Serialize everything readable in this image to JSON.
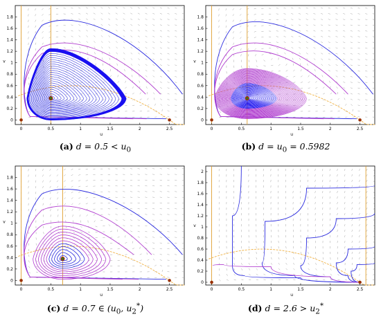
{
  "colors": {
    "trajectory": "#2a2adf",
    "inner_orbit": "#b03ccf",
    "limit_cycle_fill": "#1a10f0",
    "nullcline_v": "#e0a030",
    "nullcline_u": "#f0b040",
    "equilibrium": "#9a3000",
    "center_point": "#2a7a2a",
    "vector_field": "#9a9a9a",
    "axis": "#000000"
  },
  "captions": [
    {
      "label": "(a)",
      "expr": "d = 0.5 < u",
      "sub": "0",
      "sup": ""
    },
    {
      "label": "(b)",
      "expr": "d = u",
      "sub": "0",
      "sup": "",
      "tail": " = 0.5982"
    },
    {
      "label": "(c)",
      "expr": "d = 0.7 ∈ (u",
      "sub": "0",
      "mid": ", u",
      "sub2": "2",
      "sup2": "*",
      "close": ")"
    },
    {
      "label": "(d)",
      "expr": "d = 2.6 > u",
      "sub": "2",
      "sup": "*"
    }
  ],
  "chart_data": [
    {
      "type": "line",
      "title": "",
      "xlabel": "u",
      "ylabel": "v",
      "xlim": [
        -0.1,
        2.75
      ],
      "ylim": [
        -0.08,
        2.0
      ],
      "xticks": [
        "0",
        "0.5",
        "1",
        "1.5",
        "2",
        "2.5"
      ],
      "yticks": [
        "0",
        "0.2",
        "0.4",
        "0.6",
        "0.8",
        "1",
        "1.2",
        "1.4",
        "1.6",
        "1.8"
      ],
      "d": 0.5,
      "equilibria": [
        [
          0,
          0
        ],
        [
          2.5,
          0
        ],
        [
          0.5,
          0.38
        ]
      ],
      "outer_orbits": [
        {
          "peak_v": 1.88,
          "right_u": 2.72
        },
        {
          "peak_v": 1.45,
          "right_u": 2.35
        },
        {
          "peak_v": 1.32,
          "right_u": 2.1
        }
      ],
      "limit_cycle": {
        "u_min": 0.12,
        "u_max": 1.7,
        "v_max": 1.2
      },
      "grid": true,
      "legend": "none"
    },
    {
      "type": "line",
      "title": "",
      "xlabel": "u",
      "ylabel": "v",
      "xlim": [
        -0.1,
        2.75
      ],
      "ylim": [
        -0.08,
        2.0
      ],
      "xticks": [
        "0",
        "0.5",
        "1",
        "1.5",
        "2",
        "2.5"
      ],
      "yticks": [
        "0",
        "0.2",
        "0.4",
        "0.6",
        "0.8",
        "1",
        "1.2",
        "1.4",
        "1.6",
        "1.8"
      ],
      "d": 0.5982,
      "equilibria": [
        [
          0,
          0
        ],
        [
          2.5,
          0
        ],
        [
          0.5982,
          0.38
        ]
      ],
      "outer_orbits": [
        {
          "peak_v": 1.85,
          "right_u": 2.72
        },
        {
          "peak_v": 1.45,
          "right_u": 2.3
        },
        {
          "peak_v": 1.3,
          "right_u": 2.1
        }
      ],
      "center_cloud": {
        "u_min": 0.05,
        "u_max": 1.6,
        "v_max": 0.9
      },
      "grid": true,
      "legend": "none"
    },
    {
      "type": "line",
      "title": "",
      "xlabel": "u",
      "ylabel": "v",
      "xlim": [
        -0.1,
        2.75
      ],
      "ylim": [
        -0.08,
        2.0
      ],
      "xticks": [
        "0",
        "0.5",
        "1",
        "1.5",
        "2",
        "2.5"
      ],
      "yticks": [
        "0",
        "0.2",
        "0.4",
        "0.6",
        "0.8",
        "1",
        "1.2",
        "1.4",
        "1.6",
        "1.8"
      ],
      "d": 0.7,
      "equilibria": [
        [
          0,
          0
        ],
        [
          2.5,
          0
        ],
        [
          0.7,
          0.38
        ]
      ],
      "outer_orbits": [
        {
          "peak_v": 1.72,
          "right_u": 2.72
        },
        {
          "peak_v": 1.4,
          "right_u": 2.2
        },
        {
          "peak_v": 1.1,
          "right_u": 1.9
        }
      ],
      "spiral": {
        "u_min": 0.2,
        "u_max": 1.5,
        "v_max": 0.95
      },
      "grid": true,
      "legend": "none"
    },
    {
      "type": "line",
      "title": "",
      "xlabel": "u",
      "ylabel": "v",
      "xlim": [
        -0.1,
        2.75
      ],
      "ylim": [
        -0.05,
        2.1
      ],
      "xticks": [
        "0",
        "0.5",
        "1",
        "1.5",
        "2",
        "2.5"
      ],
      "yticks": [
        "0",
        "0.2",
        "0.4",
        "0.6",
        "0.8",
        "1",
        "1.2",
        "1.4",
        "1.6",
        "1.8",
        "2"
      ],
      "d": 2.6,
      "equilibria": [
        [
          0,
          0
        ],
        [
          2.5,
          0
        ]
      ],
      "grid": true,
      "legend": "none"
    }
  ]
}
